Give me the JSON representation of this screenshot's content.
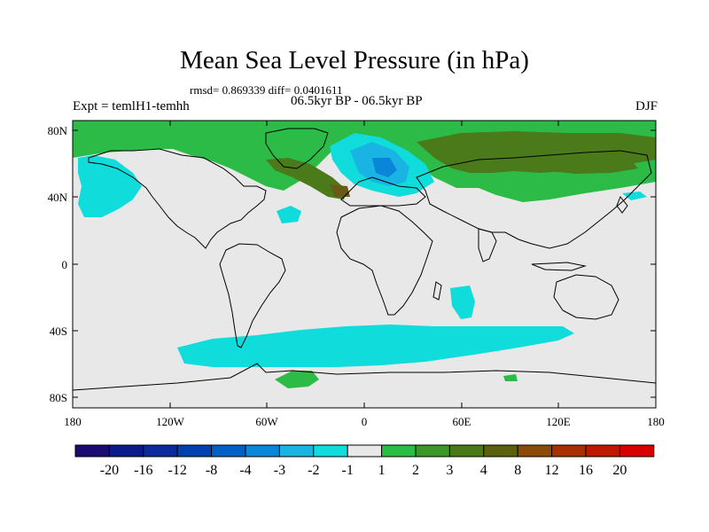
{
  "title": "Mean Sea Level Pressure (in hPa)",
  "stats": "rmsd= 0.869339  diff= 0.0401611",
  "experiment": "Expt = temlH1-temhh",
  "period": "06.5kyr BP - 06.5kyr BP",
  "season": "DJF",
  "map": {
    "lat_ticks": [
      "80N",
      "40N",
      "0",
      "40S",
      "80S"
    ],
    "lon_ticks": [
      "180",
      "120W",
      "60W",
      "0",
      "60E",
      "120E",
      "180"
    ],
    "background_color": "#e8e8e8"
  },
  "colorbar": {
    "labels": [
      "-20",
      "-16",
      "-12",
      "-8",
      "-4",
      "-3",
      "-2",
      "-1",
      "1",
      "2",
      "3",
      "4",
      "8",
      "12",
      "16",
      "20"
    ],
    "colors": [
      "#1b0a72",
      "#0a1a8a",
      "#0a2a9e",
      "#0040b0",
      "#0060c8",
      "#0a86d8",
      "#1ab4e4",
      "#10dcdc",
      "#e8e8e8",
      "#28be46",
      "#3c9628",
      "#4a7818",
      "#5a6010",
      "#8a4a08",
      "#a83000",
      "#c01800",
      "#d80000"
    ]
  }
}
